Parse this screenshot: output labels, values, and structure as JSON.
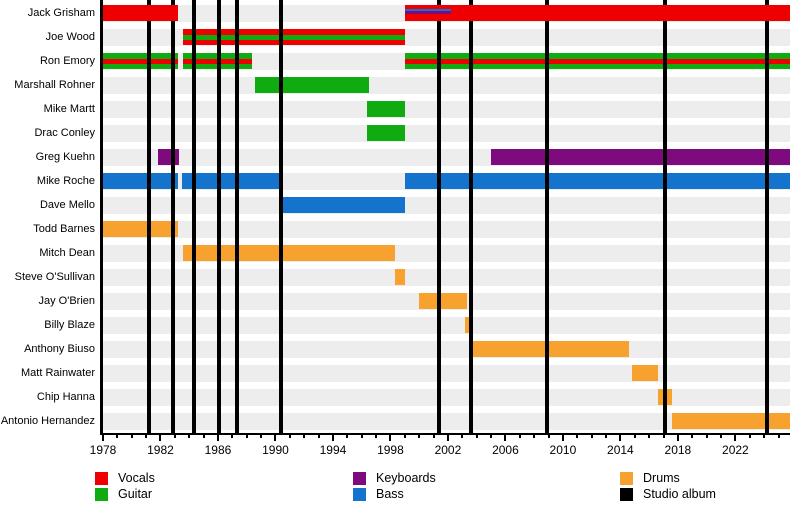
{
  "chart_data": {
    "type": "timeline",
    "description": "Band members timeline gantt chart with studio album release lines",
    "x_axis": {
      "min": 1978,
      "max": 2025.8,
      "major_ticks": [
        1978,
        1982,
        1986,
        1990,
        1994,
        1998,
        2002,
        2006,
        2010,
        2014,
        2018,
        2022
      ],
      "minor_tick_interval": 1
    },
    "roles": {
      "vocals": "#ee0000",
      "guitar": "#10ab10",
      "keyboards": "#7d0b7d",
      "bass": "#1473cc",
      "drums": "#f7a12f",
      "studio_album": "#000000"
    },
    "row_band_color": "#ededed",
    "members": [
      {
        "name": "Jack Grisham",
        "above_album_lines": true,
        "bars": [
          {
            "role": "vocals",
            "start": 1978,
            "end": 1983.2
          },
          {
            "role": "vocals",
            "start": 1999,
            "end": null,
            "stripes": [
              {
                "role": "bass",
                "start": 1999,
                "end": 2002.2
              },
              {
                "role": "keyboards",
                "start": 1999,
                "end": 2002.2
              }
            ]
          }
        ]
      },
      {
        "name": "Joe Wood",
        "bars": [
          {
            "role": "vocals",
            "start": 1983.6,
            "end": 1999,
            "stripes": [
              {
                "role": "guitar",
                "start": 1983.6,
                "end": 1999
              }
            ]
          }
        ]
      },
      {
        "name": "Ron Emory",
        "bars": [
          {
            "role": "guitar",
            "start": 1978,
            "end": 1983.2,
            "stripes": [
              {
                "role": "vocals",
                "start": 1978,
                "end": 1983.2
              }
            ]
          },
          {
            "role": "guitar",
            "start": 1983.6,
            "end": 1988.4,
            "stripes": [
              {
                "role": "vocals",
                "start": 1983.6,
                "end": 1988.4
              }
            ]
          },
          {
            "role": "guitar",
            "start": 1999,
            "end": null,
            "stripes": [
              {
                "role": "vocals",
                "start": 1999,
                "end": null
              }
            ]
          }
        ]
      },
      {
        "name": "Marshall Rohner",
        "bars": [
          {
            "role": "guitar",
            "start": 1988.6,
            "end": 1996.5
          }
        ]
      },
      {
        "name": "Mike Martt",
        "bars": [
          {
            "role": "guitar",
            "start": 1996.4,
            "end": 1999
          }
        ]
      },
      {
        "name": "Drac Conley",
        "bars": [
          {
            "role": "guitar",
            "start": 1996.4,
            "end": 1999
          }
        ]
      },
      {
        "name": "Greg Kuehn",
        "bars": [
          {
            "role": "keyboards",
            "start": 1981.8,
            "end": 1983.3
          },
          {
            "role": "keyboards",
            "start": 2005,
            "end": null
          }
        ]
      },
      {
        "name": "Mike Roche",
        "bars": [
          {
            "role": "bass",
            "start": 1978,
            "end": 1983.2
          },
          {
            "role": "bass",
            "start": 1983.5,
            "end": 1990.4
          },
          {
            "role": "bass",
            "start": 1999,
            "end": null
          }
        ]
      },
      {
        "name": "Dave Mello",
        "bars": [
          {
            "role": "bass",
            "start": 1990.3,
            "end": 1999
          }
        ]
      },
      {
        "name": "Todd Barnes",
        "bars": [
          {
            "role": "drums",
            "start": 1978,
            "end": 1983.2
          }
        ]
      },
      {
        "name": "Mitch Dean",
        "bars": [
          {
            "role": "drums",
            "start": 1983.6,
            "end": 1998.3
          }
        ]
      },
      {
        "name": "Steve O'Sullivan",
        "bars": [
          {
            "role": "drums",
            "start": 1998.3,
            "end": 1999
          }
        ]
      },
      {
        "name": "Jay O'Brien",
        "bars": [
          {
            "role": "drums",
            "start": 2000,
            "end": 2003.3
          }
        ]
      },
      {
        "name": "Billy Blaze",
        "bars": [
          {
            "role": "drums",
            "start": 2003.2,
            "end": 2003.7
          }
        ]
      },
      {
        "name": "Anthony Biuso",
        "bars": [
          {
            "role": "drums",
            "start": 2003.7,
            "end": 2014.6
          }
        ]
      },
      {
        "name": "Matt Rainwater",
        "bars": [
          {
            "role": "drums",
            "start": 2014.8,
            "end": 2016.6
          }
        ]
      },
      {
        "name": "Chip Hanna",
        "bars": [
          {
            "role": "drums",
            "start": 2016.6,
            "end": 2017.6
          }
        ]
      },
      {
        "name": "Antonio Hernandez",
        "bars": [
          {
            "role": "drums",
            "start": 2017.6,
            "end": null
          }
        ]
      }
    ],
    "album_lines": [
      1981.2,
      1982.9,
      1984.3,
      1986.1,
      1987.3,
      1990.4,
      2001.4,
      2003.6,
      2008.9,
      2017.1,
      2024.2
    ]
  },
  "legend": {
    "items": [
      {
        "label": "Vocals",
        "role": "vocals"
      },
      {
        "label": "Guitar",
        "role": "guitar"
      },
      {
        "label": "Keyboards",
        "role": "keyboards"
      },
      {
        "label": "Bass",
        "role": "bass"
      },
      {
        "label": "Drums",
        "role": "drums"
      },
      {
        "label": "Studio album",
        "role": "studio_album"
      }
    ]
  }
}
